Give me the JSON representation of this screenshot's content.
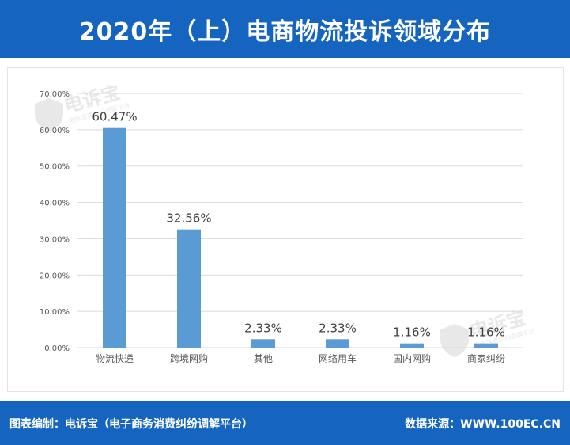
{
  "header": {
    "title": "2020年（上）电商物流投诉领域分布"
  },
  "footer": {
    "left": "图表编制：电诉宝（电子商务消费纠纷调解平台）",
    "right": "数据来源：WWW.100EC.CN"
  },
  "watermark": {
    "text": "电诉宝",
    "subtext": "电商消费纠纷调解平台"
  },
  "colors": {
    "header_bg": "#1565c0",
    "bar": "#5b9bd5",
    "grid": "#d9d9d9",
    "axis_text": "#595959",
    "label_text": "#404040"
  },
  "chart_data": {
    "type": "bar",
    "categories": [
      "物流快递",
      "跨境网购",
      "其他",
      "网络用车",
      "国内网购",
      "商家纠纷"
    ],
    "values": [
      60.47,
      32.56,
      2.33,
      2.33,
      1.16,
      1.16
    ],
    "value_labels": [
      "60.47%",
      "32.56%",
      "2.33%",
      "2.33%",
      "1.16%",
      "1.16%"
    ],
    "ylim": [
      0,
      70
    ],
    "yticks": [
      0,
      10,
      20,
      30,
      40,
      50,
      60,
      70
    ],
    "ytick_labels": [
      "0.00%",
      "10.00%",
      "20.00%",
      "30.00%",
      "40.00%",
      "50.00%",
      "60.00%",
      "70.00%"
    ],
    "title": "",
    "xlabel": "",
    "ylabel": "",
    "grid": true,
    "legend": "none"
  }
}
